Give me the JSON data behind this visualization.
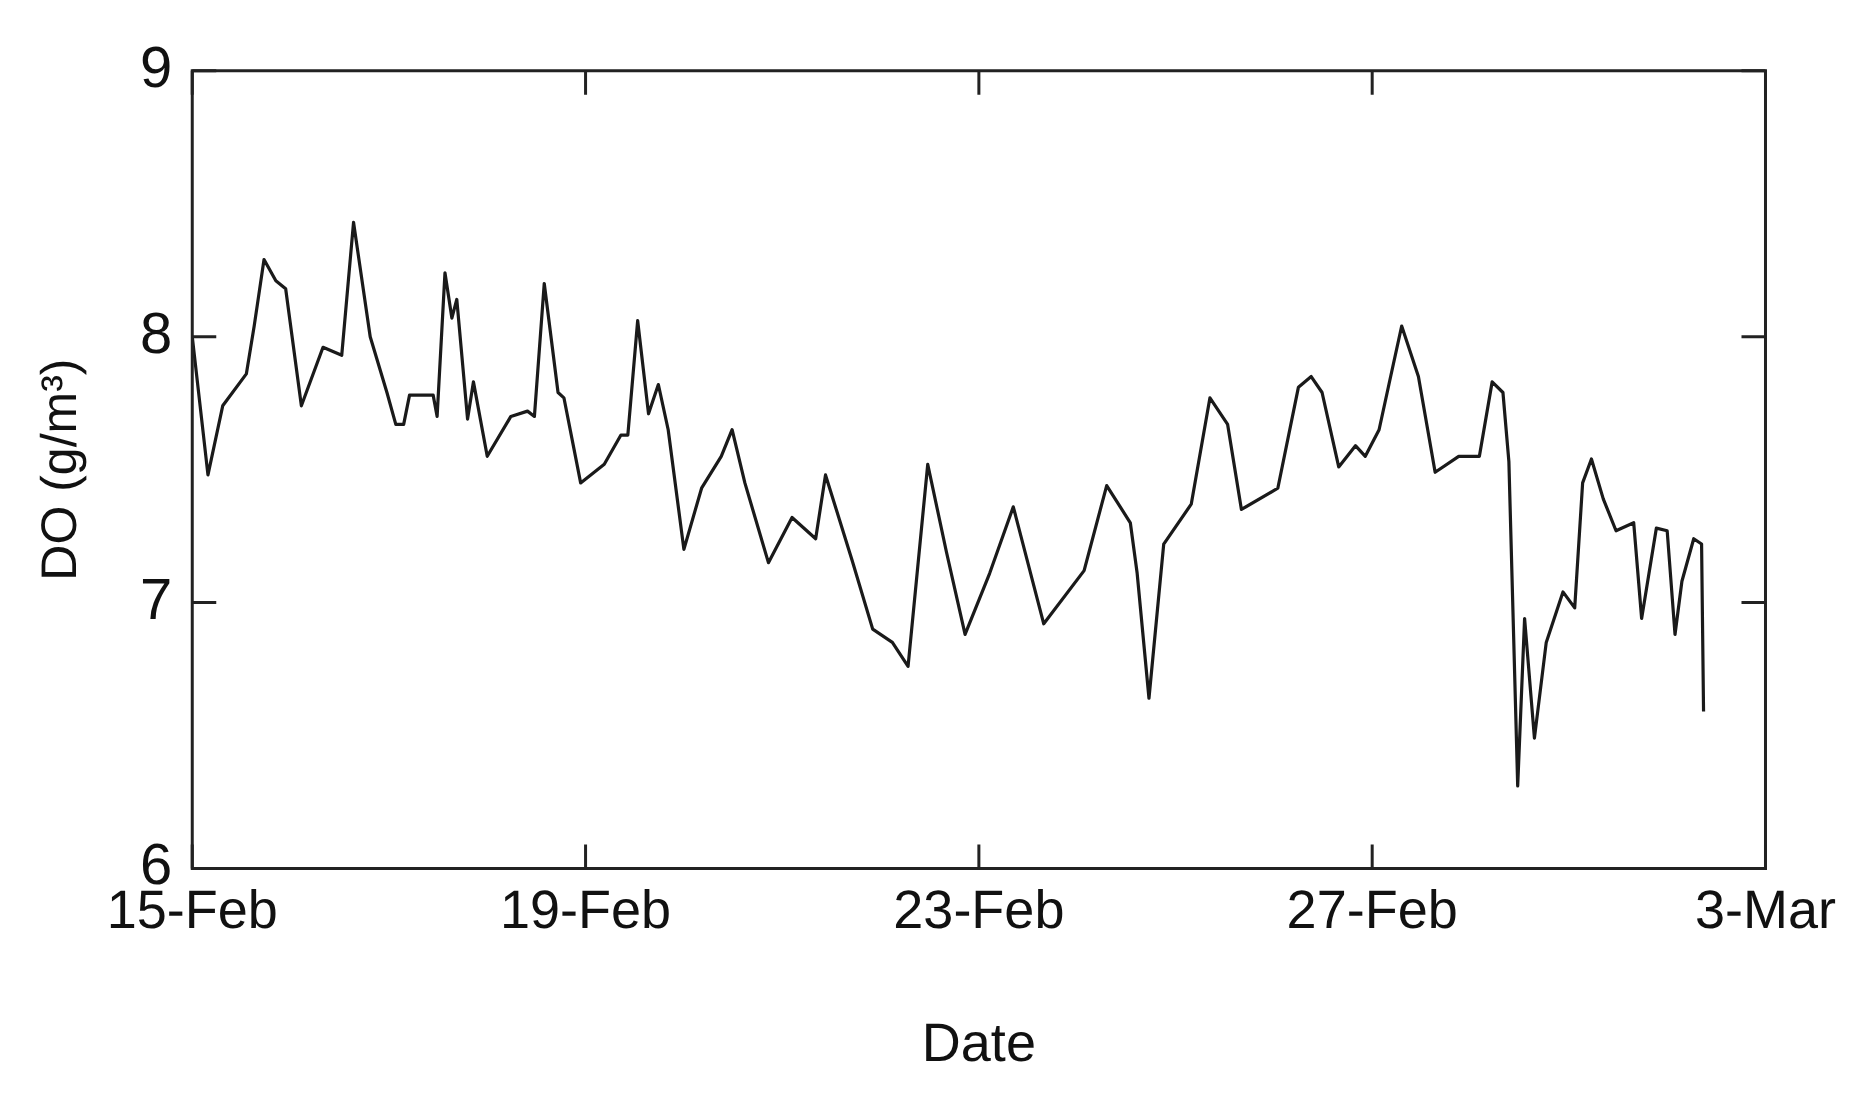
{
  "chart_data": {
    "type": "line",
    "xlabel": "Date",
    "ylabel": "DO (g/m³)",
    "xlim": [
      "--02-15",
      "--03-03"
    ],
    "ylim": [
      6,
      9
    ],
    "xticks": [
      {
        "value": "--02-15",
        "label": "15-Feb"
      },
      {
        "value": "--02-19",
        "label": "19-Feb"
      },
      {
        "value": "--02-23",
        "label": "23-Feb"
      },
      {
        "value": "--02-27",
        "label": "27-Feb"
      },
      {
        "value": "--03-03",
        "label": "3-Mar"
      }
    ],
    "yticks": [
      6,
      7,
      8,
      9
    ],
    "grid": false,
    "legend": false,
    "marker": "none",
    "line_style": "solid",
    "series": [
      {
        "color": "#1a1a1a",
        "x": [
          "--02-15T00:00",
          "--02-15T03:50",
          "--02-15T07:26",
          "--02-15T13:12",
          "--02-15T15:07",
          "--02-15T17:31",
          "--02-15T20:24",
          "--02-15T22:48",
          "--02-16T02:38",
          "--02-16T07:55",
          "--02-16T12:29",
          "--02-16T15:22",
          "--02-16T19:26",
          "--02-16T23:31",
          "--02-17T01:41",
          "--02-17T03:36",
          "--02-17T05:02",
          "--02-17T10:48",
          "--02-17T11:46",
          "--02-17T13:41",
          "--02-17T15:22",
          "--02-17T16:34",
          "--02-17T19:12",
          "--02-17T20:38",
          "--02-18T00:00",
          "--02-18T05:46",
          "--02-18T09:50",
          "--02-18T11:31",
          "--02-18T13:55",
          "--02-18T17:17",
          "--02-18T18:43",
          "--02-18T22:48",
          "--02-19T04:34",
          "--02-19T08:38",
          "--02-19T10:19",
          "--02-19T12:43",
          "--02-19T15:22",
          "--02-19T17:46",
          "--02-19T20:10",
          "--02-20T00:00",
          "--02-20T04:19",
          "--02-20T09:07",
          "--02-20T11:46",
          "--02-20T14:53",
          "--02-20T20:38",
          "--02-21T02:24",
          "--02-21T08:10",
          "--02-21T10:34",
          "--02-21T17:02",
          "--02-21T22:05",
          "--02-22T02:53",
          "--02-22T06:43",
          "--02-22T11:31",
          "--02-22T16:05",
          "--02-22T20:38",
          "--02-23T02:38",
          "--02-23T08:24",
          "--02-23T15:50",
          "--02-24T01:41",
          "--02-24T07:12",
          "--02-24T12:58",
          "--02-24T14:38",
          "--02-24T17:31",
          "--02-24T21:07",
          "--02-25T03:50",
          "--02-25T08:24",
          "--02-25T12:43",
          "--02-25T16:05",
          "--02-26T00:58",
          "--02-26T06:00",
          "--02-26T09:07",
          "--02-26T11:46",
          "--02-26T15:50",
          "--02-26T19:55",
          "--02-26T22:19",
          "--02-27T01:41",
          "--02-27T04:05",
          "--02-27T07:12",
          "--02-27T11:17",
          "--02-27T15:22",
          "--02-27T21:07",
          "--02-28T02:10",
          "--02-28T05:17",
          "--02-28T07:55",
          "--02-28T09:22",
          "--02-28T11:31",
          "--02-28T13:12",
          "--02-28T15:36",
          "--02-28T18:29",
          "--02-28T22:34",
          "--03-01T01:26",
          "--03-01T03:22",
          "--03-01T05:31",
          "--03-01T08:24",
          "--03-01T11:31",
          "--03-01T15:50",
          "--03-01T17:46",
          "--03-01T21:22",
          "--03-02T00:00",
          "--03-02T01:55",
          "--03-02T03:36",
          "--03-02T06:29",
          "--03-02T08:24",
          "--03-02T08:53"
        ],
        "values": [
          8.0,
          7.48,
          7.74,
          7.86,
          8.04,
          8.29,
          8.21,
          8.18,
          7.74,
          7.96,
          7.93,
          8.43,
          8.0,
          7.79,
          7.67,
          7.67,
          7.78,
          7.78,
          7.7,
          8.24,
          8.07,
          8.14,
          7.69,
          7.83,
          7.55,
          7.7,
          7.72,
          7.7,
          8.2,
          7.79,
          7.77,
          7.45,
          7.52,
          7.63,
          7.63,
          8.06,
          7.71,
          7.82,
          7.65,
          7.2,
          7.43,
          7.55,
          7.65,
          7.45,
          7.15,
          7.32,
          7.24,
          7.48,
          7.16,
          6.9,
          6.85,
          6.76,
          7.52,
          7.19,
          6.88,
          7.11,
          7.36,
          6.92,
          7.12,
          7.44,
          7.3,
          7.11,
          6.64,
          7.22,
          7.37,
          7.77,
          7.67,
          7.35,
          7.43,
          7.81,
          7.85,
          7.79,
          7.51,
          7.59,
          7.55,
          7.65,
          7.82,
          8.04,
          7.85,
          7.49,
          7.55,
          7.55,
          7.83,
          7.79,
          7.53,
          6.31,
          6.94,
          6.49,
          6.85,
          7.04,
          6.98,
          7.45,
          7.54,
          7.39,
          7.27,
          7.3,
          6.94,
          7.28,
          7.27,
          6.88,
          7.08,
          7.24,
          7.22,
          6.59
        ]
      }
    ]
  }
}
